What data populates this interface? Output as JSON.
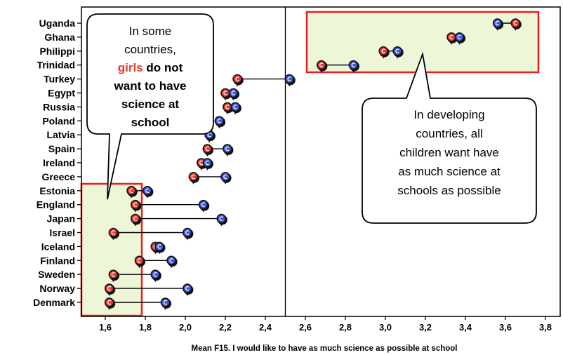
{
  "chart_data": {
    "type": "scatter",
    "xlabel": "Mean F15. I would like to have as much science as possible at school",
    "xlim": [
      1.5,
      3.82
    ],
    "xticks": [
      "1,6",
      "1,8",
      "2,0",
      "2,2",
      "2,4",
      "2,6",
      "2,8",
      "3,0",
      "3,2",
      "3,4",
      "3,6",
      "3,8"
    ],
    "xtick_values": [
      1.6,
      1.8,
      2.0,
      2.2,
      2.4,
      2.6,
      2.8,
      3.0,
      3.2,
      3.4,
      3.6,
      3.8
    ],
    "reference_line_x": 2.5,
    "series_colors": {
      "girls": "#e53a2a",
      "boys": "#3a5bd8"
    },
    "countries": [
      {
        "name": "Uganda",
        "girls": 3.65,
        "boys": 3.56
      },
      {
        "name": "Ghana",
        "girls": 3.33,
        "boys": 3.37
      },
      {
        "name": "Philippi",
        "girls": 2.99,
        "boys": 3.06
      },
      {
        "name": "Trinidad",
        "girls": 2.68,
        "boys": 2.84
      },
      {
        "name": "Turkey",
        "girls": 2.26,
        "boys": 2.52
      },
      {
        "name": "Egypt",
        "girls": 2.2,
        "boys": 2.24
      },
      {
        "name": "Russia",
        "girls": 2.21,
        "boys": 2.25
      },
      {
        "name": "Poland",
        "girls": 2.17,
        "boys": 2.17
      },
      {
        "name": "Latvia",
        "girls": 2.12,
        "boys": 2.12
      },
      {
        "name": "Spain",
        "girls": 2.11,
        "boys": 2.21
      },
      {
        "name": "Ireland",
        "girls": 2.08,
        "boys": 2.11
      },
      {
        "name": "Greece",
        "girls": 2.04,
        "boys": 2.2
      },
      {
        "name": "Estonia",
        "girls": 1.73,
        "boys": 1.81
      },
      {
        "name": "England",
        "girls": 1.75,
        "boys": 2.09
      },
      {
        "name": "Japan",
        "girls": 1.75,
        "boys": 2.18
      },
      {
        "name": "Israel",
        "girls": 1.64,
        "boys": 2.01
      },
      {
        "name": "Iceland",
        "girls": 1.85,
        "boys": 1.87
      },
      {
        "name": "Finland",
        "girls": 1.77,
        "boys": 1.93
      },
      {
        "name": "Sweden",
        "girls": 1.64,
        "boys": 1.85
      },
      {
        "name": "Norway",
        "girls": 1.62,
        "boys": 2.01
      },
      {
        "name": "Denmark",
        "girls": 1.62,
        "boys": 1.9
      }
    ]
  },
  "callouts": {
    "left": {
      "lines": [
        {
          "parts": [
            {
              "text": "In some",
              "style": "normal"
            }
          ]
        },
        {
          "parts": [
            {
              "text": "countries,",
              "style": "normal"
            }
          ]
        },
        {
          "parts": [
            {
              "text": "girls",
              "style": "red"
            },
            {
              "text": " do not",
              "style": "bold"
            }
          ]
        },
        {
          "parts": [
            {
              "text": "want to have",
              "style": "bold"
            }
          ]
        },
        {
          "parts": [
            {
              "text": "science at",
              "style": "bold"
            }
          ]
        },
        {
          "parts": [
            {
              "text": "school",
              "style": "bold"
            }
          ]
        }
      ]
    },
    "right": {
      "lines": [
        "In developing",
        "countries, all",
        "children want have",
        "as much science at",
        "schools as possible"
      ]
    }
  }
}
